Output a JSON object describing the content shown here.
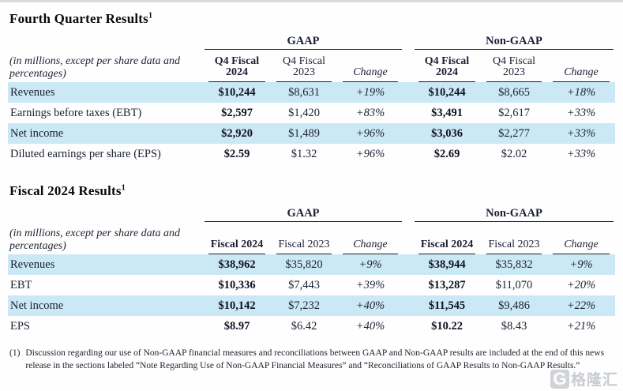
{
  "tables": [
    {
      "title": "Fourth Quarter Results",
      "footnote_ref": "1",
      "note": "(in millions, except per share data and percentages)",
      "groups": [
        "GAAP",
        "Non-GAAP"
      ],
      "col_headers": [
        "Q4 Fiscal 2024",
        "Q4 Fiscal 2023",
        "Change",
        "Q4 Fiscal 2024",
        "Q4 Fiscal 2023",
        "Change"
      ],
      "rows": [
        {
          "label": "Revenues",
          "values": [
            "$10,244",
            "$8,631",
            "+19%",
            "$10,244",
            "$8,665",
            "+18%"
          ]
        },
        {
          "label": "Earnings before taxes (EBT)",
          "values": [
            "$2,597",
            "$1,420",
            "+83%",
            "$3,491",
            "$2,617",
            "+33%"
          ]
        },
        {
          "label": "Net income",
          "values": [
            "$2,920",
            "$1,489",
            "+96%",
            "$3,036",
            "$2,277",
            "+33%"
          ]
        },
        {
          "label": "Diluted earnings per share (EPS)",
          "values": [
            "$2.59",
            "$1.32",
            "+96%",
            "$2.69",
            "$2.02",
            "+33%"
          ]
        }
      ]
    },
    {
      "title": "Fiscal 2024 Results",
      "footnote_ref": "1",
      "note": "(in millions, except per share data and percentages)",
      "groups": [
        "GAAP",
        "Non-GAAP"
      ],
      "col_headers": [
        "Fiscal 2024",
        "Fiscal 2023",
        "Change",
        "Fiscal 2024",
        "Fiscal 2023",
        "Change"
      ],
      "rows": [
        {
          "label": "Revenues",
          "values": [
            "$38,962",
            "$35,820",
            "+9%",
            "$38,944",
            "$35,832",
            "+9%"
          ]
        },
        {
          "label": "EBT",
          "values": [
            "$10,336",
            "$7,443",
            "+39%",
            "$13,287",
            "$11,070",
            "+20%"
          ]
        },
        {
          "label": "Net income",
          "values": [
            "$10,142",
            "$7,232",
            "+40%",
            "$11,545",
            "$9,486",
            "+22%"
          ]
        },
        {
          "label": "EPS",
          "values": [
            "$8.97",
            "$6.42",
            "+40%",
            "$10.22",
            "$8.43",
            "+21%"
          ]
        }
      ]
    }
  ],
  "footnote": {
    "marker": "(1)",
    "text": "Discussion regarding our use of Non-GAAP financial measures and reconciliations between GAAP and Non-GAAP results are included at the end of this news release in the sections labeled “Note Regarding Use of Non-GAAP Financial Measures” and “Reconciliations of GAAP Results to Non-GAAP Results.”"
  },
  "colors": {
    "row_highlight": "#cbe8f6",
    "rule_line": "#1f1f1f",
    "watermark_gray": "#c3c7cc"
  },
  "watermark": {
    "logo": "G",
    "text": "格隆汇"
  }
}
